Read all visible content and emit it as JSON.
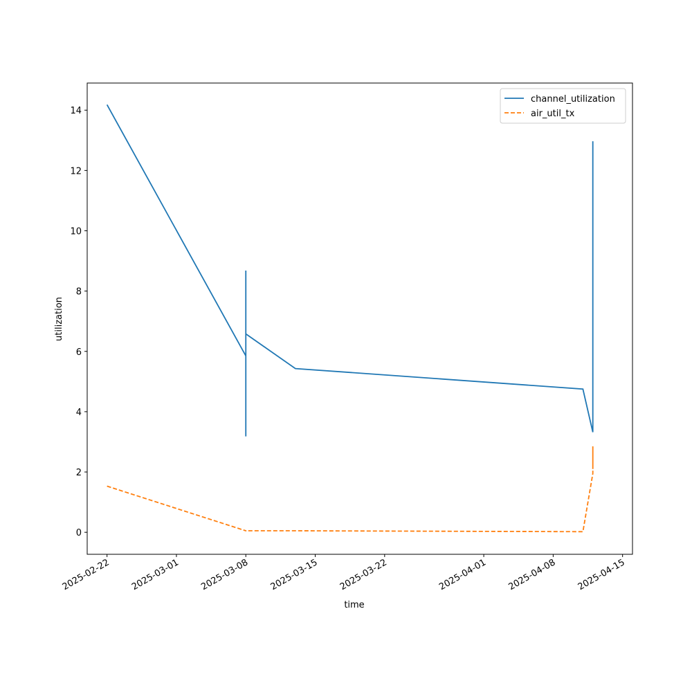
{
  "chart_data": {
    "type": "line",
    "x_label": "time",
    "y_label": "utilization",
    "x": [
      "2025-02-22",
      "2025-03-08",
      "2025-03-08",
      "2025-03-08",
      "2025-03-08",
      "2025-03-13",
      "2025-04-11",
      "2025-04-12",
      "2025-04-12",
      "2025-04-12",
      "2025-04-12"
    ],
    "series": [
      {
        "name": "channel_utilization",
        "color": "#1f77b4",
        "dash": false,
        "values": [
          14.18,
          5.85,
          8.68,
          3.18,
          6.58,
          5.43,
          4.75,
          3.32,
          12.8,
          12.97,
          6.45
        ]
      },
      {
        "name": "air_util_tx",
        "color": "#ff7f0e",
        "dash": true,
        "values": [
          1.53,
          0.05,
          0.03,
          0.04,
          0.05,
          0.05,
          0.02,
          1.95,
          2.2,
          2.85,
          2.1
        ]
      }
    ],
    "xlim": [
      "2025-02-20",
      "2025-04-16"
    ],
    "xticks": [
      "2025-02-22",
      "2025-03-01",
      "2025-03-08",
      "2025-03-15",
      "2025-03-22",
      "2025-04-01",
      "2025-04-08",
      "2025-04-15"
    ],
    "ylim": [
      -0.73,
      14.9
    ],
    "yticks": [
      0,
      2,
      4,
      6,
      8,
      10,
      12,
      14
    ],
    "legend": "upper right",
    "grid": false
  }
}
